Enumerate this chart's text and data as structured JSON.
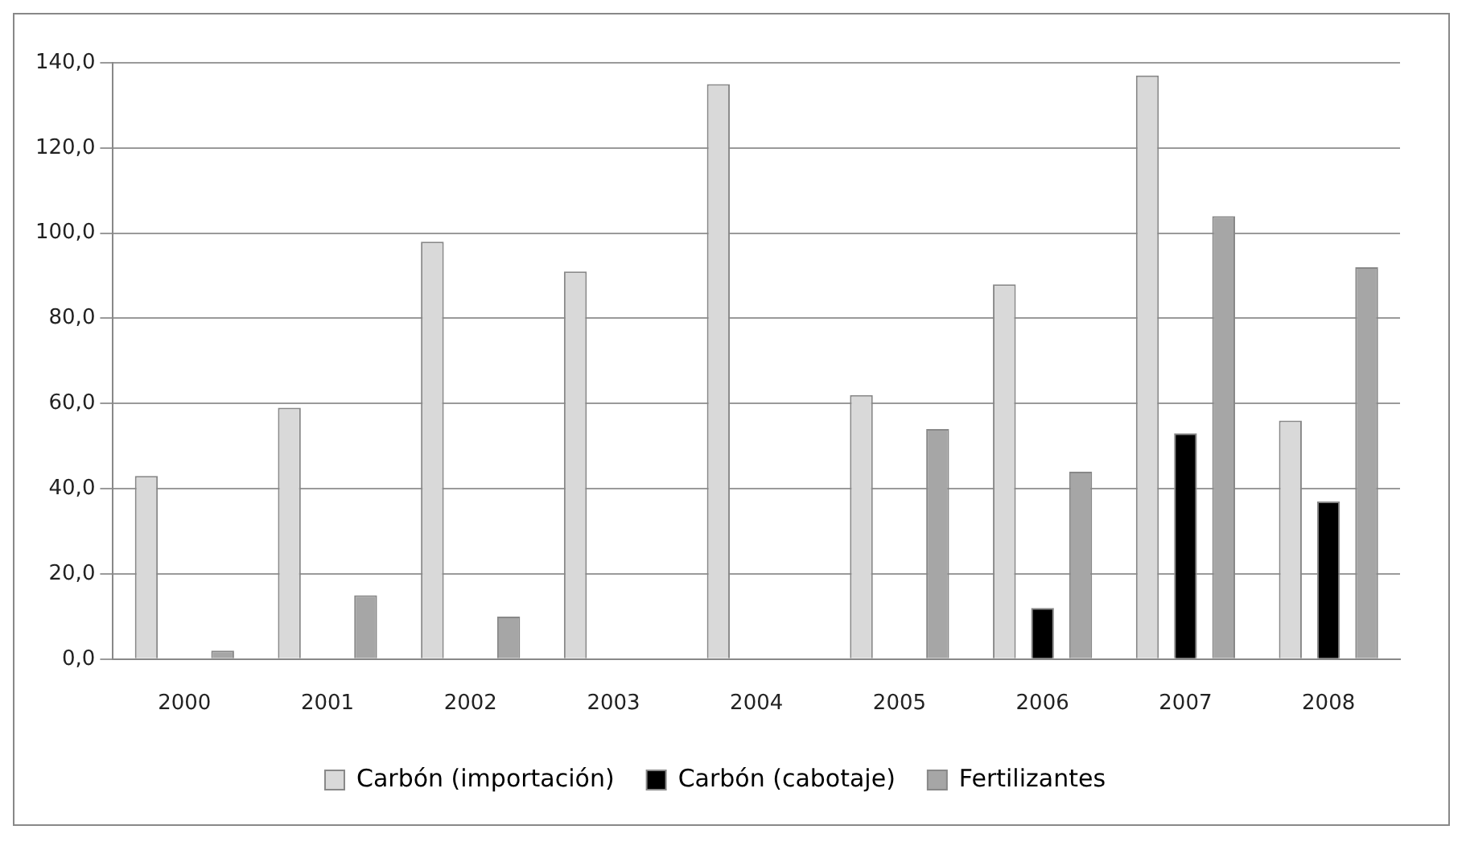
{
  "chart_data": {
    "type": "bar",
    "categories": [
      "2000",
      "2001",
      "2002",
      "2003",
      "2004",
      "2005",
      "2006",
      "2007",
      "2008"
    ],
    "series": [
      {
        "name": "Carbón (importación)",
        "color": "#d9d9d9",
        "values": [
          43,
          59,
          98,
          91,
          135,
          62,
          88,
          137,
          56
        ]
      },
      {
        "name": "Carbón (cabotaje)",
        "color": "#000000",
        "values": [
          0,
          0,
          0,
          0,
          0,
          0,
          12,
          53,
          37
        ]
      },
      {
        "name": "Fertilizantes",
        "color": "#a6a6a6",
        "values": [
          2,
          15,
          10,
          0,
          0,
          54,
          44,
          104,
          92
        ]
      }
    ],
    "ylim": [
      0,
      140
    ],
    "yticks": [
      {
        "value": 0,
        "label": "0,0"
      },
      {
        "value": 20,
        "label": "20,0"
      },
      {
        "value": 40,
        "label": "40,0"
      },
      {
        "value": 60,
        "label": "60,0"
      },
      {
        "value": 80,
        "label": "80,0"
      },
      {
        "value": 100,
        "label": "100,0"
      },
      {
        "value": 120,
        "label": "120,0"
      },
      {
        "value": 140,
        "label": "140,0"
      }
    ],
    "grid": "y",
    "legend": "bottom"
  }
}
